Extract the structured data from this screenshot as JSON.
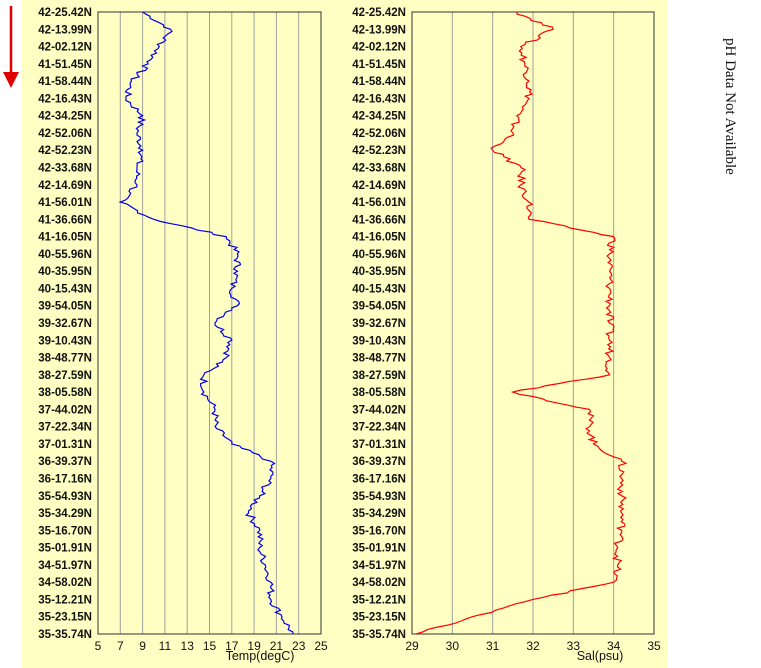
{
  "chart_data": [
    {
      "type": "line",
      "xlabel": "Temp(degC)",
      "xlim": [
        5,
        25
      ],
      "xticks": [
        5,
        7,
        9,
        11,
        13,
        15,
        17,
        19,
        21,
        23,
        25
      ],
      "ylabels": [
        "42-25.42N",
        "42-13.99N",
        "42-02.12N",
        "41-51.45N",
        "41-58.44N",
        "42-16.43N",
        "42-34.25N",
        "42-52.06N",
        "42-52.23N",
        "42-33.68N",
        "42-14.69N",
        "41-56.01N",
        "41-36.66N",
        "41-16.05N",
        "40-55.96N",
        "40-35.95N",
        "40-15.43N",
        "39-54.05N",
        "39-32.67N",
        "39-10.43N",
        "38-48.77N",
        "38-27.59N",
        "38-05.58N",
        "37-44.02N",
        "37-22.34N",
        "37-01.31N",
        "36-39.37N",
        "36-17.16N",
        "35-54.93N",
        "35-34.29N",
        "35-16.70N",
        "35-01.91N",
        "34-51.97N",
        "34-58.02N",
        "35-12.21N",
        "35-23.15N",
        "35-35.74N"
      ],
      "series": [
        {
          "color": "#0000ee",
          "values": [
            9.0,
            11.5,
            10.5,
            9.5,
            8.0,
            7.5,
            9.0,
            8.5,
            9.0,
            8.5,
            8.5,
            7.0,
            10.0,
            16.5,
            17.5,
            17.5,
            17.0,
            17.5,
            15.5,
            17.0,
            16.5,
            14.5,
            14.5,
            15.5,
            15.5,
            17.0,
            20.5,
            20.5,
            19.5,
            18.5,
            19.5,
            19.5,
            20.0,
            20.5,
            20.5,
            21.5,
            22.5
          ]
        }
      ]
    },
    {
      "type": "line",
      "xlabel": "Sal(psu)",
      "xlim": [
        29,
        35
      ],
      "xticks": [
        29,
        30,
        31,
        32,
        33,
        34,
        35
      ],
      "ylabels": [
        "42-25.42N",
        "42-13.99N",
        "42-02.12N",
        "41-51.45N",
        "41-58.44N",
        "42-16.43N",
        "42-34.25N",
        "42-52.06N",
        "42-52.23N",
        "42-33.68N",
        "42-14.69N",
        "41-56.01N",
        "41-36.66N",
        "41-16.05N",
        "40-55.96N",
        "40-35.95N",
        "40-15.43N",
        "39-54.05N",
        "39-32.67N",
        "39-10.43N",
        "38-48.77N",
        "38-27.59N",
        "38-05.58N",
        "37-44.02N",
        "37-22.34N",
        "37-01.31N",
        "36-39.37N",
        "36-17.16N",
        "35-54.93N",
        "35-34.29N",
        "35-16.70N",
        "35-01.91N",
        "34-51.97N",
        "34-58.02N",
        "35-12.21N",
        "35-23.15N",
        "35-35.74N"
      ],
      "series": [
        {
          "color": "#ff0000",
          "values": [
            31.6,
            32.5,
            31.7,
            31.8,
            31.9,
            31.9,
            31.6,
            31.5,
            31.0,
            31.7,
            31.7,
            31.9,
            31.9,
            34.0,
            33.9,
            33.9,
            33.9,
            33.9,
            33.9,
            33.9,
            33.9,
            33.9,
            31.5,
            33.4,
            33.4,
            33.5,
            34.2,
            34.2,
            34.2,
            34.2,
            34.2,
            34.1,
            34.1,
            34.0,
            32.0,
            30.5,
            29.1
          ]
        }
      ]
    }
  ],
  "side_note": "pH Data Not Available",
  "colors": {
    "panel": "#ffffc4",
    "grid": "#a0a0a0",
    "arrow": "#e00000"
  }
}
